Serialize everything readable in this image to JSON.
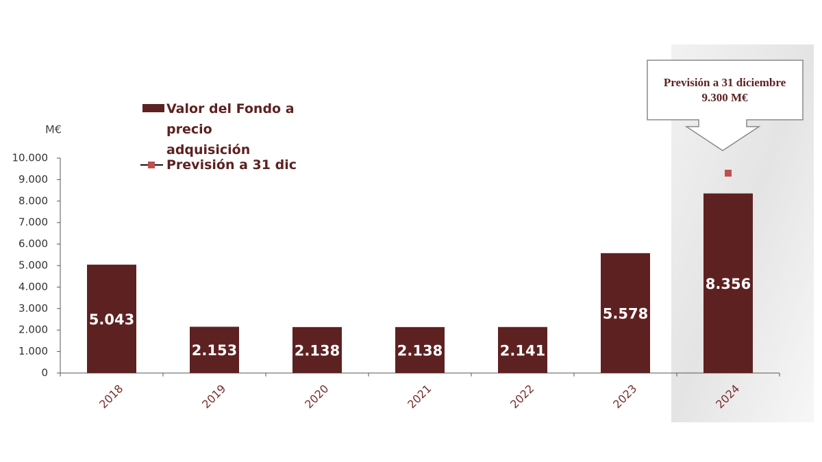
{
  "chart_data": {
    "type": "bar",
    "y_axis_label": "M€",
    "categories": [
      "2018",
      "2019",
      "2020",
      "2021",
      "2022",
      "2023",
      "2024"
    ],
    "series": [
      {
        "name": "Valor del Fondo a precio adquisición",
        "type": "bar",
        "color": "#5e2121",
        "values": [
          5043,
          2153,
          2138,
          2138,
          2141,
          5578,
          8356
        ],
        "value_labels": [
          "5.043",
          "2.153",
          "2.138",
          "2.138",
          "2.141",
          "5.578",
          "8.356"
        ]
      },
      {
        "name": "Previsión a 31 dic",
        "type": "line",
        "color": "#c0504d",
        "values": [
          null,
          null,
          null,
          null,
          null,
          null,
          9300
        ]
      }
    ],
    "ylim": [
      0,
      10000
    ],
    "yticks": [
      0,
      {
        "value": 1000,
        "label": "1.000"
      },
      {
        "value": 2000,
        "label": "2.000"
      },
      {
        "value": 3000,
        "label": "3.000"
      },
      {
        "value": 4000,
        "label": "4.000"
      },
      {
        "value": 5000,
        "label": "5.000"
      },
      {
        "value": 6000,
        "label": "6.000"
      },
      {
        "value": 7000,
        "label": "7.000"
      },
      {
        "value": 8000,
        "label": "8.000"
      },
      {
        "value": 9000,
        "label": "9.000"
      },
      {
        "value": 10000,
        "label": "10.000"
      }
    ],
    "annotation": [
      "Previsión a 31 diciembre",
      "9.300 M€"
    ]
  }
}
